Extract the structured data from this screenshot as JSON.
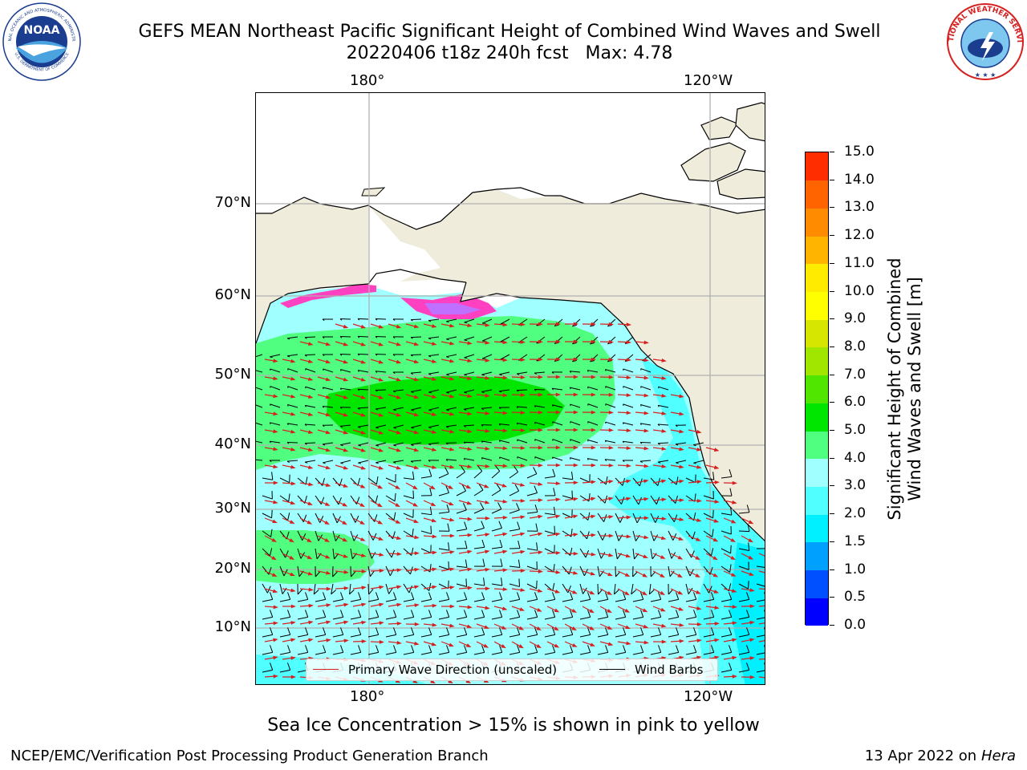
{
  "header": {
    "title_line1": "GEFS MEAN Northeast Pacific Significant Height of Combined Wind Waves and Swell",
    "title_line2": "20220406 t18z 240h fcst   Max: 4.78",
    "left_logo": "noaa-logo",
    "left_logo_text": "NATIONAL OCEANIC AND ATMOSPHERIC ADMINISTRATION",
    "left_logo_text_bottom": "U.S. DEPARTMENT OF COMMERCE",
    "right_logo": "national-weather-service-logo",
    "right_logo_text": "NATIONAL WEATHER SERVICE"
  },
  "map": {
    "lon_labels": [
      "180°",
      "120°W"
    ],
    "lat_labels": [
      "70°N",
      "60°N",
      "50°N",
      "40°N",
      "30°N",
      "20°N",
      "10°N"
    ],
    "land_color": "#efecdb",
    "legend": {
      "wave_label": "Primary Wave Direction (unscaled)",
      "barb_label": "Wind Barbs"
    }
  },
  "colorbar": {
    "title": "Significant Height of Combined\nWind Waves and Swell [m]",
    "ticks": [
      "0.0",
      "0.5",
      "1.0",
      "1.5",
      "2.0",
      "3.0",
      "4.0",
      "5.0",
      "6.0",
      "7.0",
      "8.0",
      "9.0",
      "10.0",
      "11.0",
      "12.0",
      "13.0",
      "14.0",
      "15.0"
    ],
    "colors": [
      "#0000ff",
      "#0050ff",
      "#00a0ff",
      "#00f0ff",
      "#50ffff",
      "#a0ffff",
      "#50ff80",
      "#00e600",
      "#50e600",
      "#a0e600",
      "#d7e600",
      "#ffff00",
      "#ffeb00",
      "#ffb400",
      "#ff8c00",
      "#ff6400",
      "#ff2d00",
      "#ff0000"
    ]
  },
  "footer": {
    "ice_note": "Sea Ice Concentration > 15% is shown in pink to yellow",
    "left": "NCEP/EMC/Verification Post Processing Product Generation Branch",
    "right_date": "13 Apr 2022 on",
    "right_machine": "Hera"
  }
}
